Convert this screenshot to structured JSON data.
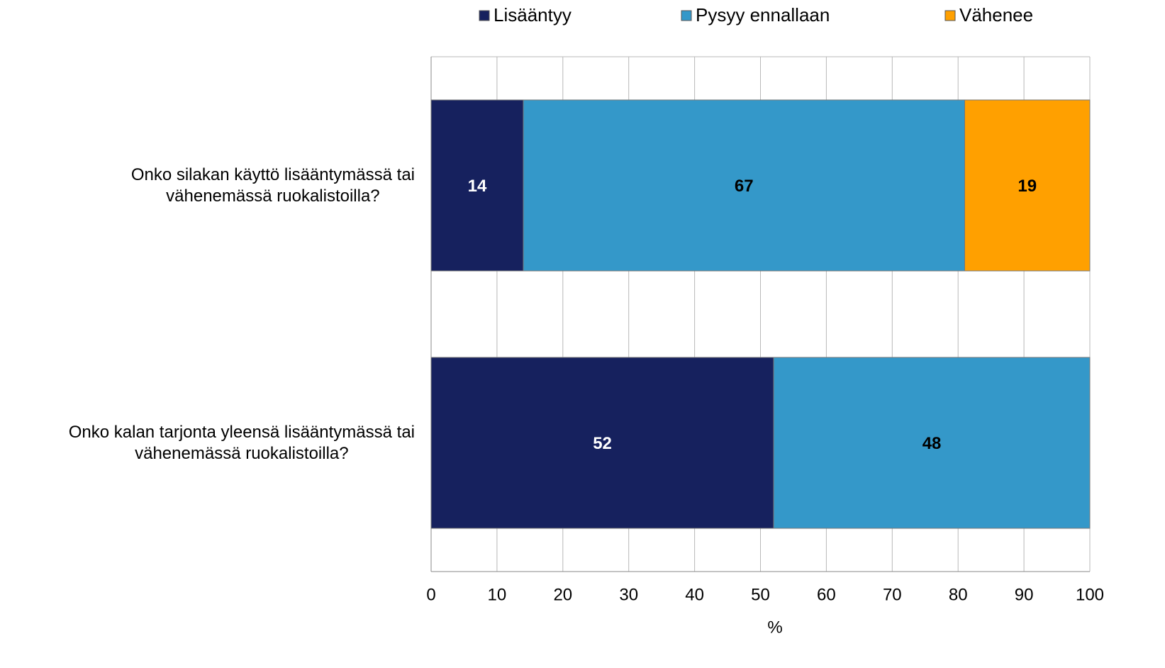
{
  "chart_data": {
    "type": "stacked_barh",
    "categories": [
      "Onko silakan käyttö lisääntymässä tai\nvähenemässä ruokalistoilla?",
      "Onko kalan tarjonta yleensä lisääntymässä tai\nvähenemässä ruokalistoilla?"
    ],
    "series": [
      {
        "name": "Lisääntyy",
        "color": "#16215e",
        "label_color": "#ffffff",
        "values": [
          14,
          52
        ]
      },
      {
        "name": "Pysyy ennallaan",
        "color": "#3498c9",
        "label_color": "#000000",
        "values": [
          67,
          48
        ]
      },
      {
        "name": "Vähenee",
        "color": "#ffa000",
        "label_color": "#000000",
        "values": [
          19,
          null
        ]
      }
    ],
    "xlim": [
      0,
      100
    ],
    "xticks": [
      0,
      10,
      20,
      30,
      40,
      50,
      60,
      70,
      80,
      90,
      100
    ],
    "xlabel": "%",
    "grid": true,
    "legend": "top"
  }
}
